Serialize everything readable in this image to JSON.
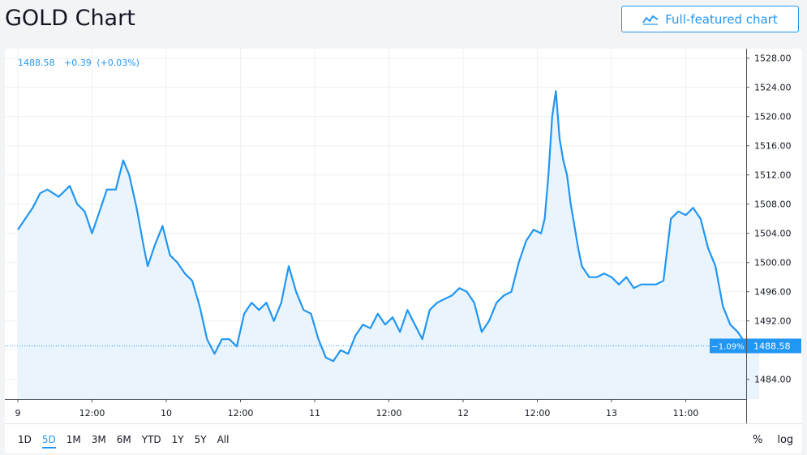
{
  "header": {
    "title": "GOLD Chart",
    "full_chart_label": "Full-featured chart",
    "full_chart_icon": "chart-line-icon"
  },
  "legend": {
    "last": "1488.58",
    "change": "+0.39",
    "change_pct": "(+0.03%)"
  },
  "price_badge": {
    "pct": "−1.09%",
    "value": "1488.58"
  },
  "ranges": [
    "1D",
    "5D",
    "1M",
    "3M",
    "6M",
    "YTD",
    "1Y",
    "5Y",
    "All"
  ],
  "active_range": "5D",
  "scale_buttons": [
    "%",
    "log"
  ],
  "colors": {
    "line": "#2196f3",
    "area": "#eaf4fd",
    "grid": "#eef0f3",
    "axis_text": "#131722"
  },
  "chart_data": {
    "type": "area",
    "y_ticks": [
      1484,
      1488,
      1492,
      1496,
      1500,
      1504,
      1508,
      1512,
      1516,
      1520,
      1524,
      1528
    ],
    "y_tick_labels": [
      "1484.00",
      "1488.00",
      "1492.00",
      "1496.00",
      "1500.00",
      "1504.00",
      "1508.00",
      "1512.00",
      "1516.00",
      "1520.00",
      "1524.00",
      "1528.00"
    ],
    "ylim": [
      1481.3,
      1529.3
    ],
    "x_ticks": [
      0,
      1,
      2,
      3,
      4,
      5,
      6,
      7,
      8,
      9
    ],
    "x_tick_labels": [
      "9",
      "12:00",
      "10",
      "12:00",
      "11",
      "12:00",
      "12",
      "12:00",
      "13",
      "11:00"
    ],
    "xlim": [
      0,
      9.99
    ],
    "last_value": 1488.58,
    "series": [
      {
        "points": [
          [
            0.0,
            1504.5
          ],
          [
            0.1,
            1506.0
          ],
          [
            0.2,
            1507.5
          ],
          [
            0.3,
            1509.5
          ],
          [
            0.4,
            1510.0
          ],
          [
            0.55,
            1509.0
          ],
          [
            0.7,
            1510.5
          ],
          [
            0.8,
            1508.0
          ],
          [
            0.9,
            1507.0
          ],
          [
            1.0,
            1504.0
          ],
          [
            1.1,
            1507.0
          ],
          [
            1.2,
            1510.0
          ],
          [
            1.32,
            1510.0
          ],
          [
            1.42,
            1514.0
          ],
          [
            1.5,
            1512.0
          ],
          [
            1.6,
            1507.5
          ],
          [
            1.7,
            1502.0
          ],
          [
            1.75,
            1499.5
          ],
          [
            1.85,
            1502.5
          ],
          [
            1.95,
            1505.0
          ],
          [
            2.05,
            1501.0
          ],
          [
            2.15,
            1500.0
          ],
          [
            2.25,
            1498.5
          ],
          [
            2.35,
            1497.5
          ],
          [
            2.45,
            1494.0
          ],
          [
            2.55,
            1489.5
          ],
          [
            2.65,
            1487.5
          ],
          [
            2.75,
            1489.5
          ],
          [
            2.85,
            1489.5
          ],
          [
            2.95,
            1488.5
          ],
          [
            3.05,
            1493.0
          ],
          [
            3.15,
            1494.5
          ],
          [
            3.25,
            1493.5
          ],
          [
            3.35,
            1494.5
          ],
          [
            3.45,
            1492.0
          ],
          [
            3.55,
            1494.5
          ],
          [
            3.65,
            1499.5
          ],
          [
            3.75,
            1496.0
          ],
          [
            3.85,
            1493.5
          ],
          [
            3.95,
            1493.0
          ],
          [
            4.05,
            1489.5
          ],
          [
            4.15,
            1487.0
          ],
          [
            4.25,
            1486.5
          ],
          [
            4.35,
            1488.0
          ],
          [
            4.45,
            1487.5
          ],
          [
            4.55,
            1490.0
          ],
          [
            4.65,
            1491.5
          ],
          [
            4.75,
            1491.0
          ],
          [
            4.85,
            1493.0
          ],
          [
            4.95,
            1491.5
          ],
          [
            5.05,
            1492.5
          ],
          [
            5.15,
            1490.5
          ],
          [
            5.25,
            1493.5
          ],
          [
            5.35,
            1491.5
          ],
          [
            5.45,
            1489.5
          ],
          [
            5.55,
            1493.5
          ],
          [
            5.65,
            1494.5
          ],
          [
            5.75,
            1495.0
          ],
          [
            5.85,
            1495.5
          ],
          [
            5.95,
            1496.5
          ],
          [
            6.05,
            1496.0
          ],
          [
            6.15,
            1494.5
          ],
          [
            6.25,
            1490.5
          ],
          [
            6.35,
            1492.0
          ],
          [
            6.45,
            1494.5
          ],
          [
            6.55,
            1495.5
          ],
          [
            6.65,
            1496.0
          ],
          [
            6.75,
            1500.0
          ],
          [
            6.85,
            1503.0
          ],
          [
            6.95,
            1504.5
          ],
          [
            7.05,
            1504.0
          ],
          [
            7.1,
            1506.0
          ],
          [
            7.15,
            1512.0
          ],
          [
            7.2,
            1520.0
          ],
          [
            7.25,
            1523.5
          ],
          [
            7.3,
            1517.0
          ],
          [
            7.35,
            1514.0
          ],
          [
            7.4,
            1512.0
          ],
          [
            7.45,
            1508.0
          ],
          [
            7.5,
            1505.0
          ],
          [
            7.55,
            1502.0
          ],
          [
            7.6,
            1499.5
          ],
          [
            7.7,
            1498.0
          ],
          [
            7.8,
            1498.0
          ],
          [
            7.9,
            1498.5
          ],
          [
            8.0,
            1498.0
          ],
          [
            8.1,
            1497.0
          ],
          [
            8.2,
            1498.0
          ],
          [
            8.3,
            1496.5
          ],
          [
            8.4,
            1497.0
          ],
          [
            8.5,
            1497.0
          ],
          [
            8.6,
            1497.0
          ],
          [
            8.7,
            1497.5
          ],
          [
            8.8,
            1506.0
          ],
          [
            8.9,
            1507.0
          ],
          [
            9.0,
            1506.5
          ],
          [
            9.1,
            1507.5
          ],
          [
            9.2,
            1506.0
          ],
          [
            9.3,
            1502.0
          ],
          [
            9.4,
            1499.5
          ],
          [
            9.5,
            1494.0
          ],
          [
            9.6,
            1491.5
          ],
          [
            9.7,
            1490.5
          ],
          [
            9.8,
            1489.0
          ],
          [
            9.9,
            1488.2
          ],
          [
            9.99,
            1488.58
          ]
        ]
      }
    ]
  }
}
